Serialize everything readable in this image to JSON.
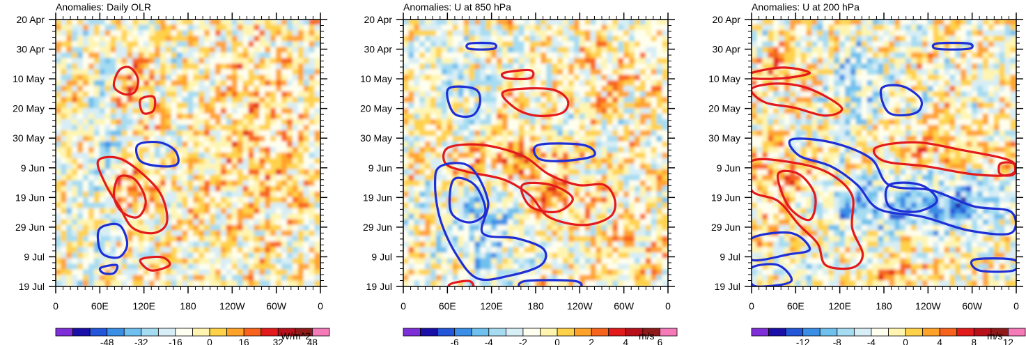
{
  "figure": {
    "panels": [
      {
        "id": "olr",
        "title": "Anomalies: Daily OLR",
        "units": "W/m^2"
      },
      {
        "id": "u850",
        "title": "Anomalies: U at 850 hPa",
        "units": "m/s"
      },
      {
        "id": "u200",
        "title": "Anomalies: U at 200 hPa",
        "units": "m/s"
      }
    ]
  },
  "chart_data": [
    {
      "type": "heatmap",
      "title": "Anomalies: Daily OLR",
      "xlabel": "",
      "ylabel": "",
      "x_ticks": [
        "0",
        "60E",
        "120E",
        "180",
        "120W",
        "60W",
        "0"
      ],
      "y_ticks": [
        "20 Apr",
        "30 Apr",
        "10 May",
        "20 May",
        "30 May",
        "9 Jun",
        "19 Jun",
        "29 Jun",
        "9 Jul",
        "19 Jul"
      ],
      "colorbar": {
        "units": "W/m^2",
        "labels": [
          "-48",
          "-32",
          "-16",
          "0",
          "16",
          "32",
          "48"
        ],
        "range": [
          -64,
          64
        ]
      },
      "contours": [
        {
          "sign": "positive",
          "color": "#e31a1c",
          "regions": [
            "10 May-20 May near 90E-120E",
            "9 Jun-29 Jun near 60E-150E",
            "9 Jul near 120E-150E"
          ]
        },
        {
          "sign": "negative",
          "color": "#1f2fd6",
          "regions": [
            "30 May-9 Jun near 120E-180",
            "29 Jun-9 Jul near 60E-90E"
          ]
        }
      ]
    },
    {
      "type": "heatmap",
      "title": "Anomalies: U at 850 hPa",
      "xlabel": "",
      "ylabel": "",
      "x_ticks": [
        "0",
        "60E",
        "120E",
        "180",
        "120W",
        "60W",
        "0"
      ],
      "y_ticks": [
        "20 Apr",
        "30 Apr",
        "10 May",
        "20 May",
        "30 May",
        "9 Jun",
        "19 Jun",
        "29 Jun",
        "9 Jul",
        "19 Jul"
      ],
      "colorbar": {
        "units": "m/s",
        "labels": [
          "-6",
          "-4",
          "-2",
          "0",
          "2",
          "4",
          "6"
        ],
        "range": [
          -8,
          8
        ]
      },
      "contours": [
        {
          "sign": "positive",
          "color": "#e31a1c",
          "regions": [
            "10 May-20 May near 150E-180",
            "30 May-29 Jun near 60E-120W"
          ]
        },
        {
          "sign": "negative",
          "color": "#1f2fd6",
          "regions": [
            "10 May-20 May near 60E-90E",
            "9 Jun-19 Jul near 60E-150E",
            "30 May-9 Jun near 180-120W"
          ]
        }
      ]
    },
    {
      "type": "heatmap",
      "title": "Anomalies: U at 200 hPa",
      "xlabel": "",
      "ylabel": "",
      "x_ticks": [
        "0",
        "60E",
        "120E",
        "180",
        "120W",
        "60W",
        "0"
      ],
      "y_ticks": [
        "20 Apr",
        "30 Apr",
        "10 May",
        "20 May",
        "30 May",
        "9 Jun",
        "19 Jun",
        "29 Jun",
        "9 Jul",
        "19 Jul"
      ],
      "colorbar": {
        "units": "m/s",
        "labels": [
          "-12",
          "-8",
          "-4",
          "0",
          "4",
          "8",
          "12"
        ],
        "range": [
          -16,
          16
        ]
      },
      "contours": [
        {
          "sign": "positive",
          "color": "#e31a1c",
          "regions": [
            "10 May-20 May near 0-90E",
            "30 May-9 Jun near 180-0",
            "9 Jun-9 Jul near 0-150E"
          ]
        },
        {
          "sign": "negative",
          "color": "#1f2fd6",
          "regions": [
            "30 Apr near 120W",
            "20 May near 150W",
            "30 May-29 Jun near 90E-0",
            "29 Jun-19 Jul near 0-60E"
          ]
        }
      ]
    }
  ]
}
